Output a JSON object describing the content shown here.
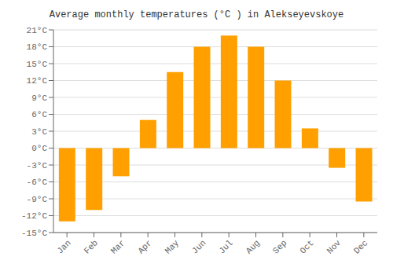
{
  "chart_data": {
    "type": "bar",
    "title": "Average monthly temperatures (°C ) in Alekseyevskoye",
    "categories": [
      "Jan",
      "Feb",
      "Mar",
      "Apr",
      "May",
      "Jun",
      "Jul",
      "Aug",
      "Sep",
      "Oct",
      "Nov",
      "Dec"
    ],
    "values": [
      -13.0,
      -11.0,
      -5.0,
      5.0,
      13.5,
      18.0,
      20.0,
      18.0,
      12.0,
      3.5,
      -3.5,
      -9.5
    ],
    "color": "#FFA000",
    "ylim": [
      -15,
      21
    ],
    "yticks": [
      {
        "value": -15,
        "label": "-15°C"
      },
      {
        "value": -12,
        "label": "-12°C"
      },
      {
        "value": -9,
        "label": "-9°C"
      },
      {
        "value": -6,
        "label": "-6°C"
      },
      {
        "value": -3,
        "label": "-3°C"
      },
      {
        "value": 0,
        "label": "0°C"
      },
      {
        "value": 3,
        "label": "3°C"
      },
      {
        "value": 6,
        "label": "6°C"
      },
      {
        "value": 9,
        "label": "9°C"
      },
      {
        "value": 12,
        "label": "12°C"
      },
      {
        "value": 15,
        "label": "15°C"
      },
      {
        "value": 18,
        "label": "18°C"
      },
      {
        "value": 21,
        "label": "21°C"
      }
    ],
    "grid": true
  }
}
